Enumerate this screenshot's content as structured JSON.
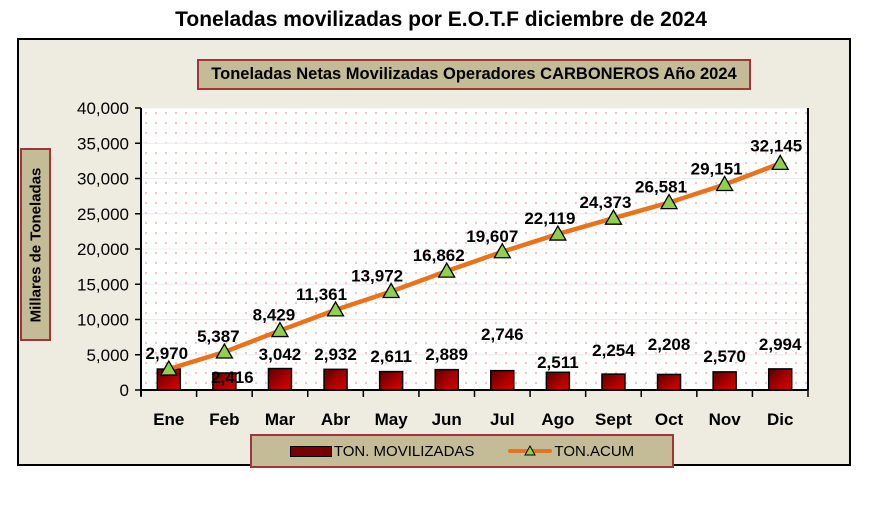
{
  "page": {
    "title": "Toneladas movilizadas por E.O.T.F diciembre de 2024"
  },
  "chart_data": {
    "type": "bar+line",
    "title": "Toneladas Netas Movilizadas Operadores CARBONEROS Año 2024",
    "xlabel": "",
    "ylabel": "Millares de Toneladas",
    "ylim": [
      0,
      40000
    ],
    "yticks": [
      "0",
      "5,000",
      "10,000",
      "15,000",
      "20,000",
      "25,000",
      "30,000",
      "35,000",
      "40,000"
    ],
    "categories": [
      "Ene",
      "Feb",
      "Mar",
      "Abr",
      "May",
      "Jun",
      "Jul",
      "Ago",
      "Sept",
      "Oct",
      "Nov",
      "Dic"
    ],
    "series": [
      {
        "name": "TON. MOVILIZADAS",
        "type": "bar",
        "color": "#8b0000",
        "values": [
          2970,
          2416,
          3042,
          2932,
          2611,
          2889,
          2746,
          2511,
          2254,
          2208,
          2570,
          2994
        ],
        "labels": [
          "2,970",
          "2,416",
          "3,042",
          "2,932",
          "2,611",
          "2,889",
          "2,746",
          "2,511",
          "2,254",
          "2,208",
          "2,570",
          "2,994"
        ]
      },
      {
        "name": "TON.ACUM",
        "type": "line",
        "color": "#e8731a",
        "marker": "triangle",
        "marker_color": "#8fd14f",
        "values": [
          2970,
          5387,
          8429,
          11361,
          13972,
          16862,
          19607,
          22119,
          24373,
          26581,
          29151,
          32145
        ],
        "labels": [
          "2,970",
          "5,387",
          "8,429",
          "11,361",
          "13,972",
          "16,862",
          "19,607",
          "22,119",
          "24,373",
          "26,581",
          "29,151",
          "32,145"
        ]
      }
    ],
    "grid": true,
    "legend_position": "bottom"
  },
  "legend": {
    "bar_label": "TON. MOVILIZADAS",
    "line_label": "TON.ACUM"
  }
}
